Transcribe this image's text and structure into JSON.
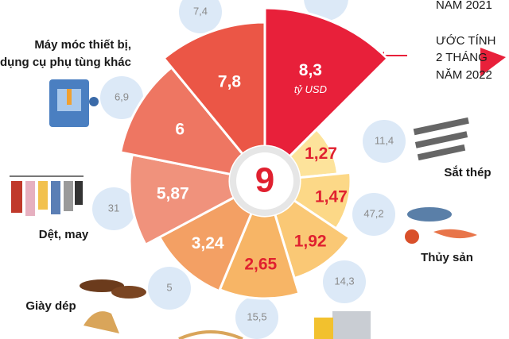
{
  "center": "9",
  "segments": [
    {
      "label": "8,3",
      "unit": "tỷ USD"
    },
    {
      "label": "1,27"
    },
    {
      "label": "1,47"
    },
    {
      "label": "1,92"
    },
    {
      "label": "2,65"
    },
    {
      "label": "3,24"
    },
    {
      "label": "5,87"
    },
    {
      "label": "6"
    },
    {
      "label": "7,8"
    }
  ],
  "bubbles": [
    "7,4",
    "6,9",
    "31",
    "5",
    "15,5",
    "14,3",
    "47,2",
    "11,4"
  ],
  "categories": {
    "machinery": [
      "Máy móc thiết bị,",
      "dụng cụ phụ tùng khác"
    ],
    "textile": "Dệt, may",
    "footwear": "Giày dép",
    "steel": "Sắt thép",
    "seafood": "Thủy sản"
  },
  "legend": {
    "previous": "NĂM 2021",
    "current": [
      "ƯỚC TÍNH",
      "2 THÁNG",
      "NĂM 2022"
    ]
  }
}
